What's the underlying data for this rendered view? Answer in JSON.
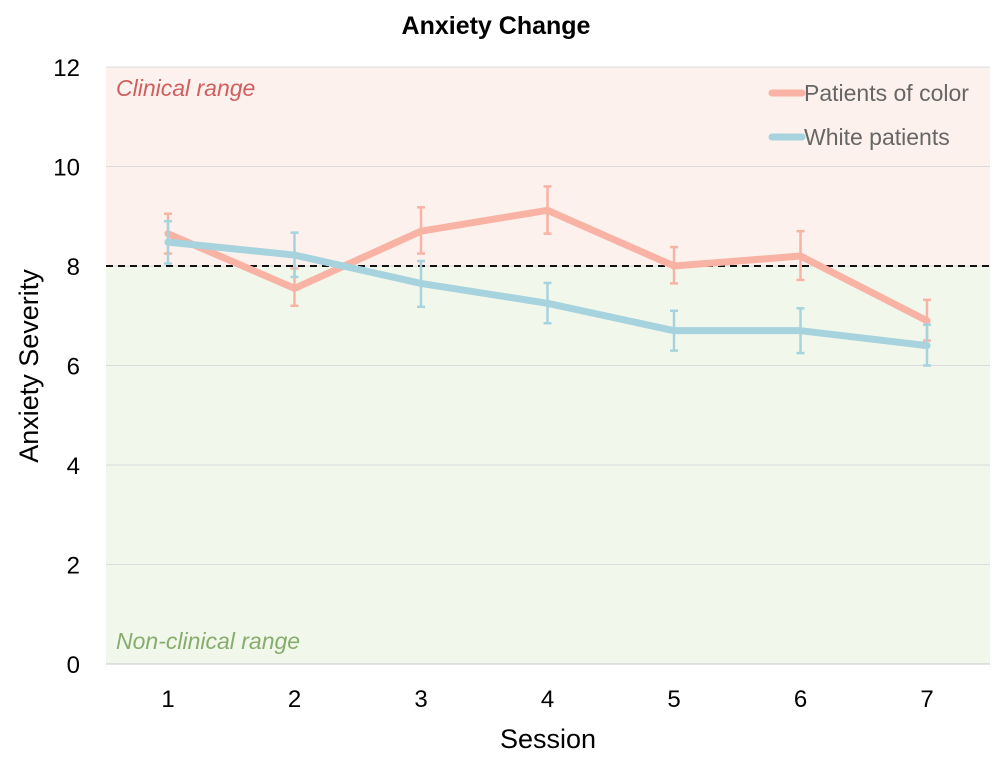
{
  "chart_data": {
    "type": "line",
    "title": "Anxiety Change",
    "xlabel": "Session",
    "ylabel": "Anxiety Severity",
    "categories": [
      "1",
      "2",
      "3",
      "4",
      "5",
      "6",
      "7"
    ],
    "ylim": [
      0,
      12
    ],
    "yticks": [
      "0",
      "2",
      "4",
      "6",
      "8",
      "10",
      "12"
    ],
    "grid": true,
    "threshold": 8,
    "regions": {
      "clinical": {
        "label": "Clinical range",
        "color": "#fcf1ec",
        "text_color": "#cf5f5f"
      },
      "nonclinical": {
        "label": "Non-clinical range",
        "color": "#f2f7ec",
        "text_color": "#86ad6b"
      }
    },
    "legend_position": "top-right",
    "series": [
      {
        "name": "Patients of color",
        "color": "#f9b3a5",
        "values": [
          8.65,
          7.55,
          8.7,
          9.12,
          8.0,
          8.2,
          6.9
        ],
        "err_low": [
          8.25,
          7.2,
          8.25,
          8.65,
          7.65,
          7.72,
          6.5
        ],
        "err_high": [
          9.05,
          7.95,
          9.18,
          9.6,
          8.38,
          8.7,
          7.32
        ]
      },
      {
        "name": "White patients",
        "color": "#a7d3de",
        "values": [
          8.48,
          8.22,
          7.65,
          7.25,
          6.7,
          6.7,
          6.4
        ],
        "err_low": [
          8.05,
          7.78,
          7.18,
          6.85,
          6.3,
          6.25,
          6.0
        ],
        "err_high": [
          8.9,
          8.67,
          8.1,
          7.66,
          7.1,
          7.15,
          6.82
        ]
      }
    ]
  }
}
